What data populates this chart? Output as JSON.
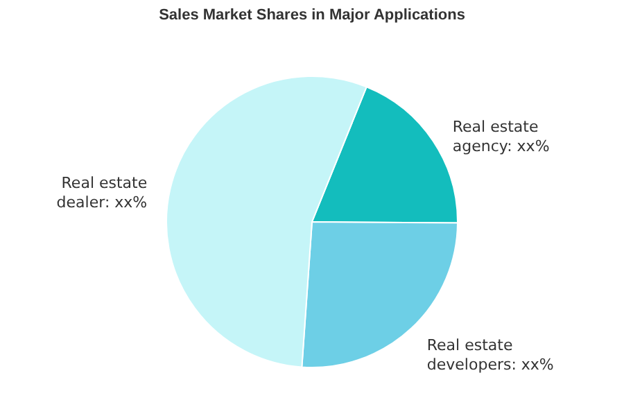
{
  "chart_data": {
    "type": "pie",
    "title": "Sales Market Shares in Major Applications",
    "categories": [
      "Real estate agency",
      "Real estate developers",
      "Real estate dealer"
    ],
    "values": [
      19,
      26,
      55
    ],
    "colors": [
      "#13bdbd",
      "#6dcfe6",
      "#c5f5f8"
    ],
    "value_labels": [
      "xx%",
      "xx%",
      "xx%"
    ],
    "legend": false
  }
}
